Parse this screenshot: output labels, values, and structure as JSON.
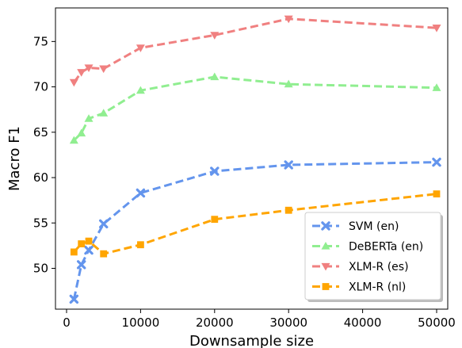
{
  "chart_data": {
    "type": "line",
    "xlabel": "Downsample size",
    "ylabel": "Macro F1",
    "xlim": [
      -1500,
      51500
    ],
    "ylim": [
      45.5,
      78.7
    ],
    "xticks": [
      0,
      10000,
      20000,
      30000,
      40000,
      50000
    ],
    "yticks": [
      50,
      55,
      60,
      65,
      70,
      75
    ],
    "grid": false,
    "legend_position": "lower-right",
    "series": [
      {
        "name": "SVM (en)",
        "color": "#6495ED",
        "marker": "x",
        "x": [
          1000,
          2000,
          3000,
          5000,
          10000,
          20000,
          30000,
          50000
        ],
        "y": [
          46.6,
          50.4,
          52.0,
          54.9,
          58.3,
          60.7,
          61.4,
          61.7
        ]
      },
      {
        "name": "DeBERTa (en)",
        "color": "#90EE90",
        "marker": "triangle-up",
        "x": [
          1000,
          2000,
          3000,
          5000,
          10000,
          20000,
          30000,
          50000
        ],
        "y": [
          64.1,
          64.9,
          66.5,
          67.1,
          69.6,
          71.1,
          70.3,
          69.9
        ]
      },
      {
        "name": "XLM-R (es)",
        "color": "#F08080",
        "marker": "triangle-down",
        "x": [
          1000,
          2000,
          3000,
          5000,
          10000,
          20000,
          30000,
          50000
        ],
        "y": [
          70.5,
          71.6,
          72.1,
          72.0,
          74.3,
          75.7,
          77.5,
          76.5
        ]
      },
      {
        "name": "XLM-R (nl)",
        "color": "#FFA500",
        "marker": "square",
        "x": [
          1000,
          2000,
          3000,
          5000,
          10000,
          20000,
          30000,
          50000
        ],
        "y": [
          51.8,
          52.7,
          53.0,
          51.6,
          52.6,
          55.4,
          56.4,
          58.2
        ]
      }
    ]
  }
}
